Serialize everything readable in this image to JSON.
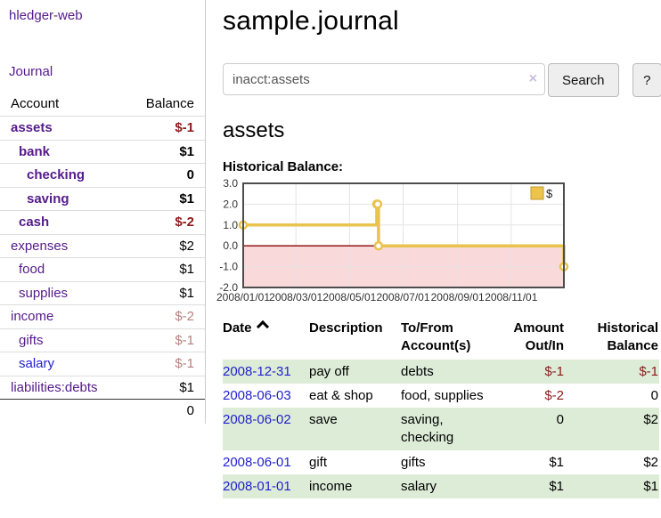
{
  "colors": {
    "link_purple": "#551a8b",
    "link_blue": "#2222cc",
    "negative_strong": "#8b1a1a",
    "negative_soft": "#b97f7f",
    "row_stripe_green": "#ddecd7",
    "chart_line": "#e9c34d",
    "chart_negative_fill": "#f9d9d9",
    "chart_zero_line": "#8b0000"
  },
  "sidebar": {
    "brand": "hledger-web",
    "journal_link": "Journal",
    "header": {
      "account": "Account",
      "balance": "Balance"
    },
    "accounts": [
      {
        "name": "assets",
        "depth": 0,
        "bold": true,
        "balance": "$-1",
        "balance_style": "neg-strong"
      },
      {
        "name": "bank",
        "depth": 1,
        "bold": true,
        "balance": "$1",
        "balance_style": ""
      },
      {
        "name": "checking",
        "depth": 2,
        "bold": true,
        "balance": "0",
        "balance_style": ""
      },
      {
        "name": "saving",
        "depth": 2,
        "bold": true,
        "balance": "$1",
        "balance_style": ""
      },
      {
        "name": "cash",
        "depth": 1,
        "bold": true,
        "balance": "$-2",
        "balance_style": "neg-strong"
      },
      {
        "name": "expenses",
        "depth": 0,
        "bold": false,
        "balance": "$2",
        "balance_style": ""
      },
      {
        "name": "food",
        "depth": 1,
        "bold": false,
        "balance": "$1",
        "balance_style": ""
      },
      {
        "name": "supplies",
        "depth": 1,
        "bold": false,
        "balance": "$1",
        "balance_style": ""
      },
      {
        "name": "income",
        "depth": 0,
        "bold": false,
        "balance": "$-2",
        "balance_style": "neg-soft"
      },
      {
        "name": "gifts",
        "depth": 1,
        "bold": false,
        "balance": "$-1",
        "balance_style": "neg-soft"
      },
      {
        "name": "salary",
        "depth": 1,
        "bold": false,
        "balance": "$-1",
        "balance_style": "neg-soft",
        "link_style": "unvisited"
      },
      {
        "name": "liabilities:debts",
        "depth": 0,
        "bold": false,
        "balance": "$1",
        "balance_style": ""
      }
    ],
    "total": "0"
  },
  "main": {
    "title": "sample.journal",
    "search": {
      "value": "inacct:assets",
      "clear_icon": "×",
      "button": "Search",
      "help_button": "?"
    },
    "account_heading": "assets",
    "chart_heading": "Historical Balance:",
    "register": {
      "headers": {
        "date": "Date",
        "description": "Description",
        "accounts": "To/From Account(s)",
        "amount": "Amount Out/In",
        "balance": "Historical Balance"
      },
      "rows": [
        {
          "date": "2008-12-31",
          "description": "pay off",
          "accounts": "debts",
          "amount": "$-1",
          "amount_negative": true,
          "balance": "$-1",
          "balance_negative": true,
          "shaded": true
        },
        {
          "date": "2008-06-03",
          "description": "eat & shop",
          "accounts": "food, supplies",
          "amount": "$-2",
          "amount_negative": true,
          "balance": "0",
          "balance_negative": false,
          "shaded": false
        },
        {
          "date": "2008-06-02",
          "description": "save",
          "accounts": "saving, checking",
          "amount": "0",
          "amount_negative": false,
          "balance": "$2",
          "balance_negative": false,
          "shaded": true
        },
        {
          "date": "2008-06-01",
          "description": "gift",
          "accounts": "gifts",
          "amount": "$1",
          "amount_negative": false,
          "balance": "$2",
          "balance_negative": false,
          "shaded": false
        },
        {
          "date": "2008-01-01",
          "description": "income",
          "accounts": "salary",
          "amount": "$1",
          "amount_negative": false,
          "balance": "$1",
          "balance_negative": false,
          "shaded": true
        }
      ]
    }
  },
  "chart_data": {
    "type": "line",
    "step": true,
    "title": "Historical Balance:",
    "series": [
      {
        "name": "$",
        "color": "#e9c34d",
        "points": [
          [
            "2008-01-01",
            1
          ],
          [
            "2008-06-01",
            2
          ],
          [
            "2008-06-02",
            2
          ],
          [
            "2008-06-03",
            0
          ],
          [
            "2008-12-31",
            -1
          ]
        ]
      }
    ],
    "x_domain": [
      "2008-01-01",
      "2008-12-31"
    ],
    "ylim": [
      -2,
      3
    ],
    "yticks": [
      "3.0",
      "2.0",
      "1.0",
      "0.0",
      "-1.0",
      "-2.0"
    ],
    "xticks": [
      {
        "date": "2008-01-01",
        "label": "2008/01/01"
      },
      {
        "date": "2008-03-01",
        "label": "2008/03/01"
      },
      {
        "date": "2008-05-01",
        "label": "2008/05/01"
      },
      {
        "date": "2008-07-01",
        "label": "2008/07/01"
      },
      {
        "date": "2008-09-01",
        "label": "2008/09/01"
      },
      {
        "date": "2008-11-01",
        "label": "2008/11/01"
      }
    ],
    "grid": true,
    "negative_region_fill": "#f9d9d9",
    "zero_line_color": "#8b0000",
    "legend": {
      "label": "$",
      "position": "top-right"
    }
  }
}
